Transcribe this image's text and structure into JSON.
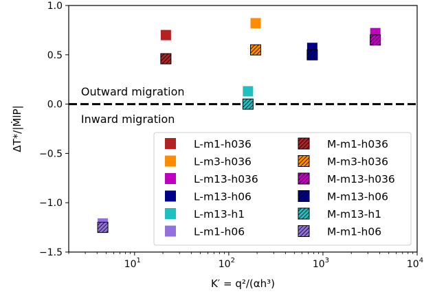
{
  "chart_data": {
    "type": "scatter",
    "xscale": "log",
    "xlim": [
      2,
      10000
    ],
    "ylim": [
      -1.5,
      1.0
    ],
    "xlabel": "K′ = q²/(αh³)",
    "ylabel": "ΔT*/|ṀlP|",
    "yticks": [
      "−1.5",
      "−1.0",
      "−0.5",
      "0.0",
      "0.5",
      "1.0"
    ],
    "ytick_values": [
      -1.5,
      -1.0,
      -0.5,
      0.0,
      0.5,
      1.0
    ],
    "xticks": [
      {
        "base": "10",
        "exp": "1",
        "value": 10
      },
      {
        "base": "10",
        "exp": "2",
        "value": 100
      },
      {
        "base": "10",
        "exp": "3",
        "value": 1000
      },
      {
        "base": "10",
        "exp": "4",
        "value": 10000
      }
    ],
    "reference_line": {
      "y": 0.0,
      "style": "dashed",
      "color": "#000000"
    },
    "annotations": [
      {
        "text": "Outward migration",
        "x": 2.7,
        "y": 0.13
      },
      {
        "text": "Inward migration",
        "x": 2.7,
        "y": -0.15
      }
    ],
    "legend_position": "lower-right",
    "series": [
      {
        "name": "L-m1-h036",
        "color": "#b22222",
        "hatched": false,
        "x": 21.5,
        "y": 0.7
      },
      {
        "name": "L-m3-h036",
        "color": "#ff8c00",
        "hatched": false,
        "x": 193,
        "y": 0.82
      },
      {
        "name": "L-m13-h036",
        "color": "#c000c0",
        "hatched": false,
        "x": 3600,
        "y": 0.72
      },
      {
        "name": "L-m13-h06",
        "color": "#00008b",
        "hatched": false,
        "x": 770,
        "y": 0.57
      },
      {
        "name": "L-m13-h1",
        "color": "#20c0c0",
        "hatched": false,
        "x": 160,
        "y": 0.13
      },
      {
        "name": "L-m1-h06",
        "color": "#9370db",
        "hatched": false,
        "x": 4.6,
        "y": -1.21
      },
      {
        "name": "M-m1-h036",
        "color": "#b22222",
        "hatched": true,
        "x": 21.5,
        "y": 0.46
      },
      {
        "name": "M-m3-h036",
        "color": "#ff8c00",
        "hatched": true,
        "x": 193,
        "y": 0.55
      },
      {
        "name": "M-m13-h036",
        "color": "#c000c0",
        "hatched": true,
        "x": 3600,
        "y": 0.65
      },
      {
        "name": "M-m13-h06",
        "color": "#00008b",
        "hatched": true,
        "x": 770,
        "y": 0.5
      },
      {
        "name": "M-m13-h1",
        "color": "#20c0c0",
        "hatched": true,
        "x": 160,
        "y": 0.0
      },
      {
        "name": "M-m1-h06",
        "color": "#9370db",
        "hatched": true,
        "x": 4.6,
        "y": -1.25
      }
    ]
  }
}
